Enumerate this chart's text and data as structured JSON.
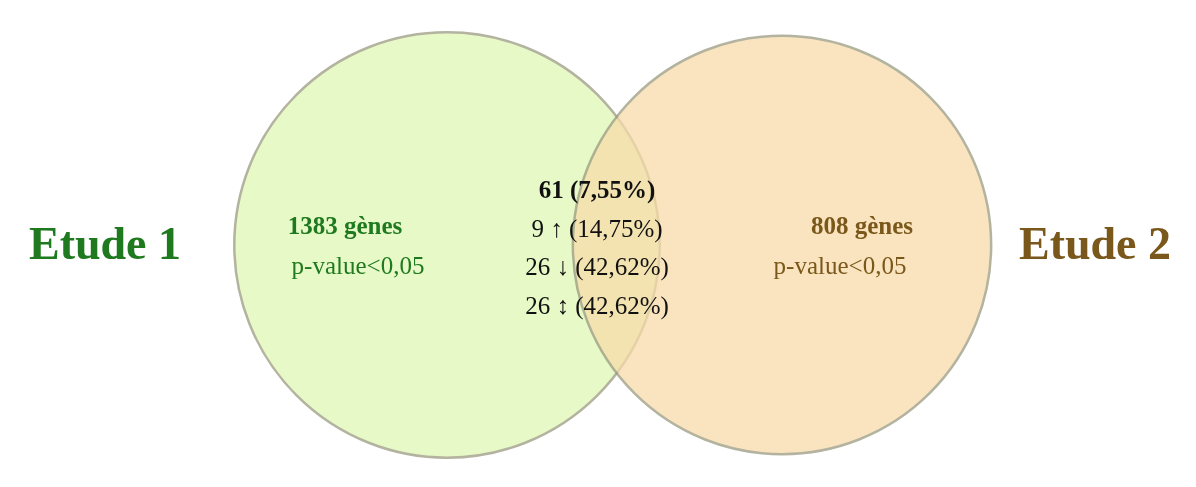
{
  "chart_data": {
    "type": "other",
    "categories": [
      "Etude 1",
      "Etude 2"
    ],
    "values": [
      1383,
      808
    ],
    "value_labels": [
      "1383 gènes",
      "808 gènes"
    ],
    "colors": [
      "#e0f7b4",
      "#f7dcaa"
    ],
    "annotations": [
      "p-value<0,05",
      "p-value<0,05",
      "61 (7,55%)",
      "9 ↑ (14,75%)",
      "26 ↓ (42,62%)",
      "26 ↕ (42,62%)"
    ]
  }
}
